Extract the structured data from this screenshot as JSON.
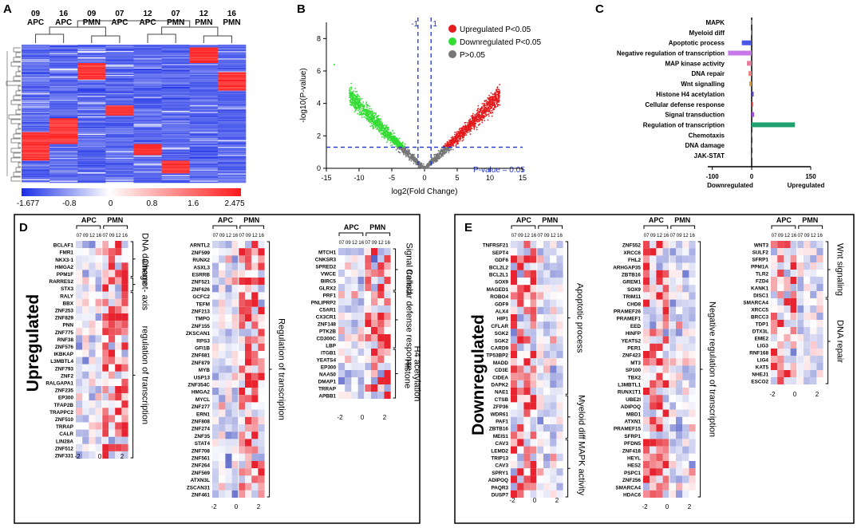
{
  "panel_labels": [
    "A",
    "B",
    "C",
    "D",
    "E"
  ],
  "chart_data": [
    {
      "panel": "A",
      "type": "heatmap",
      "columns": [
        {
          "day": "09",
          "group": "APC"
        },
        {
          "day": "16",
          "group": "APC"
        },
        {
          "day": "09",
          "group": "PMN"
        },
        {
          "day": "07",
          "group": "APC"
        },
        {
          "day": "12",
          "group": "APC"
        },
        {
          "day": "07",
          "group": "PMN"
        },
        {
          "day": "12",
          "group": "PMN"
        },
        {
          "day": "16",
          "group": "PMN"
        }
      ],
      "colorbar": {
        "ticks": [
          "-1.677",
          "-0.8",
          "0",
          "0.8",
          "1.6",
          "2.475"
        ],
        "min": -1.677,
        "max": 2.475,
        "colors": [
          "#1a2ee6",
          "#ffffff",
          "#ff1a1a"
        ]
      },
      "high_blocks": [
        {
          "col": 0,
          "from": 0.63,
          "to": 0.84
        },
        {
          "col": 1,
          "from": 0.53,
          "to": 0.72
        },
        {
          "col": 2,
          "from": 0.13,
          "to": 0.25
        },
        {
          "col": 3,
          "from": 0.44,
          "to": 0.51
        },
        {
          "col": 4,
          "from": 0.72,
          "to": 0.8
        },
        {
          "col": 5,
          "from": 0.84,
          "to": 0.93
        },
        {
          "col": 6,
          "from": 0.02,
          "to": 0.13
        },
        {
          "col": 7,
          "from": 0.2,
          "to": 0.33
        }
      ]
    },
    {
      "panel": "B",
      "type": "scatter",
      "title": "",
      "xlabel": "log2(Fold Change)",
      "ylabel": "-log10(P-value)",
      "xlim": [
        -15,
        15
      ],
      "ylim": [
        0,
        9
      ],
      "xticks": [
        "-15",
        "-10",
        "-5",
        "0",
        "5",
        "10",
        "15"
      ],
      "yticks": [
        "0",
        "2",
        "4",
        "6",
        "8"
      ],
      "threshold_x": [
        -1,
        1
      ],
      "threshold_x_labels": [
        "-1",
        "1"
      ],
      "threshold_y": 1.3,
      "threshold_y_label": "P-value = 0.05",
      "series": [
        {
          "name": "Upregulated P<0.05",
          "color": "#e41a1c"
        },
        {
          "name": "Downregulated P<0.05",
          "color": "#33dd33"
        },
        {
          "name": "P>0.05",
          "color": "#777777"
        }
      ]
    },
    {
      "panel": "C",
      "type": "bar",
      "orientation": "horizontal",
      "categories": [
        "MAPK",
        "Myeloid diff",
        "Apoptotic process",
        "Negative regulation of transcription",
        "MAP kinase activity",
        "DNA repair",
        "Wnt signalling",
        "Histone H4 acetylation",
        "Cellular defense response",
        "Signal transduction",
        "Regulation of transcription",
        "Chemotaxis",
        "DNA damage",
        "JAK-STAT"
      ],
      "values": [
        -1,
        -2,
        -25,
        -60,
        -12,
        -8,
        -6,
        5,
        4,
        6,
        110,
        1,
        1,
        1
      ],
      "colors": [
        "#999999",
        "#999999",
        "#4a56e8",
        "#c678e6",
        "#e87a9a",
        "#f08080",
        "#e09a3a",
        "#5a3fc0",
        "#e05a5a",
        "#a04ad8",
        "#1e9f6e",
        "#999999",
        "#999999",
        "#999999"
      ],
      "xlim": [
        -100,
        150
      ],
      "xticks": [
        "-100",
        "0",
        "150"
      ],
      "xlabels": {
        "left": "Downregulated",
        "right": "Upregulated"
      }
    },
    {
      "panel": "D",
      "type": "heatmap",
      "side_label": "Upregulated",
      "header": {
        "groups": [
          "APC",
          "PMN"
        ],
        "days": [
          "07",
          "09",
          "12",
          "16",
          "07",
          "09",
          "12",
          "16"
        ]
      },
      "scale_ticks": [
        "-2",
        "0",
        "2"
      ],
      "blocks": [
        {
          "genes": [
            "BCLAF1",
            "FMR1",
            "NKX3-1",
            "HMGA2",
            "PPM1F",
            "RARRES2",
            "STX3",
            "RALY",
            "BBX",
            "ZNF253",
            "ZNF829",
            "PNN",
            "ZNF775",
            "RNF38",
            "ZNF576",
            "IKBKAP",
            "L3MBTL4",
            "ZNF793",
            "ZNF2",
            "RALGAPA1",
            "ZNF235",
            "EP300",
            "TFAP2B",
            "TRAPPC2",
            "ZNF510",
            "TRRAP",
            "CALR",
            "LIN28A",
            "ZNF512",
            "ZNF331"
          ],
          "annotations": [
            {
              "label": "DNA damage",
              "from": 0,
              "to": 5
            },
            {
              "label": "Chemot- axis",
              "from": 5,
              "to": 7
            },
            {
              "label": "regulation of transcription",
              "from": 7,
              "to": 30
            }
          ]
        },
        {
          "genes": [
            "ARNTL2",
            "ZNF599",
            "RUNX2",
            "ASXL3",
            "ESRRB",
            "ZNF521",
            "ZNF626",
            "GCFC2",
            "TEFM",
            "ZNF213",
            "TMPO",
            "ZNF155",
            "ZKSCAN1",
            "RPS3",
            "GFI1B",
            "ZNF681",
            "ZNF879",
            "MYB",
            "USP13",
            "ZNF354C",
            "HMGA2",
            "MYCL",
            "ZNF277",
            "ERN1",
            "ZNF808",
            "ZNF274",
            "ZNF35",
            "STAT4",
            "ZNF708",
            "ZNF561",
            "ZNF264",
            "ZNF569",
            "ATXN3L",
            "ZSCAN31",
            "ZNF461"
          ],
          "annotations": [
            {
              "label": "Regulation of transcription",
              "from": 0,
              "to": 35
            }
          ]
        },
        {
          "genes": [
            "MTCH1",
            "CNKSR3",
            "SPRED2",
            "VWCE",
            "BIRC5",
            "GLRX2",
            "PRF1",
            "PNLIPRP2",
            "C5AR1",
            "CX3CR1",
            "ZNF148",
            "PTK2B",
            "CD300C",
            "LBP",
            "ITGB1",
            "YEATS4",
            "EP300",
            "NAA50",
            "DMAP1",
            "TRRAP",
            "APBB1"
          ],
          "annotations": [
            {
              "label": "Signal transd.",
              "from": 0,
              "to": 6
            },
            {
              "label": "Cellular defense response",
              "from": 6,
              "to": 14
            },
            {
              "label": "H4 acetylation",
              "from": 14,
              "to": 21
            },
            {
              "label": "Histone",
              "from": 14,
              "to": 21
            }
          ]
        }
      ]
    },
    {
      "panel": "E",
      "type": "heatmap",
      "side_label": "Downregulated",
      "header": {
        "groups": [
          "APC",
          "PMN"
        ],
        "days": [
          "07",
          "09",
          "12",
          "16",
          "07",
          "09",
          "12",
          "16"
        ]
      },
      "scale_ticks": [
        "-2",
        "0",
        "2"
      ],
      "blocks": [
        {
          "genes": [
            "TNFRSF21",
            "SEPT4",
            "GDF6",
            "BCL2L2",
            "BCL2L1",
            "SOX9",
            "MAGED1",
            "ROBO4",
            "GDF9",
            "ALX4",
            "HIP1",
            "CFLAR",
            "SGK2",
            "SGK2",
            "CARD9",
            "TP53BP2",
            "MADD",
            "CD3E",
            "CIDEA",
            "DAPK2",
            "NAE1",
            "CTSB",
            "ZFP36",
            "WDR61",
            "PAF1",
            "ZBTB16",
            "MEIS1",
            "CAV3",
            "LEMD2",
            "TRIP13",
            "CAV3",
            "SPRY1",
            "ADIPOQ",
            "PAQR3",
            "DUSP7"
          ],
          "annotations": [
            {
              "label": "Apoptotic process",
              "from": 0,
              "to": 21
            },
            {
              "label": "Myeloid diff",
              "from": 21,
              "to": 27
            },
            {
              "label": "MAPK activity",
              "from": 27,
              "to": 35
            }
          ]
        },
        {
          "genes": [
            "ZNF552",
            "XRCC6",
            "FHL2",
            "ARHGAP35",
            "ZBTB16",
            "GREM1",
            "SOX9",
            "TRIM11",
            "CHD8",
            "PRAMEF26",
            "PRAMEF1",
            "EED",
            "HINFP",
            "YEATS2",
            "PER1",
            "ZNF423",
            "MT3",
            "SP100",
            "TBX2",
            "L3MBTL1",
            "RUNX1T1",
            "UBE2I",
            "ADIPOQ",
            "MBD1",
            "ATXN1",
            "PRAMEF15",
            "SFRP1",
            "PFDN5",
            "ZNF418",
            "HEYL",
            "HES2",
            "PSPC1",
            "ZNF256",
            "SMARCA4",
            "HDAC6"
          ],
          "annotations": [
            {
              "label": "Negative regulation of transcription",
              "from": 0,
              "to": 35
            }
          ]
        },
        {
          "genes": [
            "WNT3",
            "SULF2",
            "SFRP1",
            "PPM1A",
            "TLR2",
            "FZD4",
            "KANK1",
            "DISC1",
            "SMARCA4",
            "XRCC5",
            "BRCC3",
            "TDP1",
            "DTX3L",
            "EME2",
            "LIG3",
            "RNF168",
            "LIG4",
            "KAT5",
            "NHEJ1",
            "ESCO2"
          ],
          "annotations": [
            {
              "label": "Wnt signaling",
              "from": 0,
              "to": 8
            },
            {
              "label": "DNA repair",
              "from": 8,
              "to": 20
            }
          ]
        }
      ]
    }
  ]
}
